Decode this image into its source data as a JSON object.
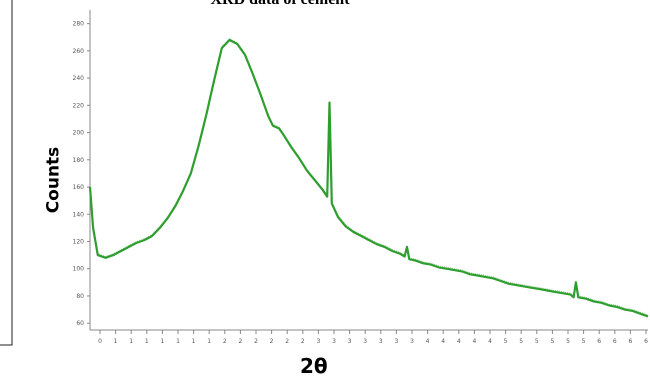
{
  "chart_data": {
    "type": "line",
    "title": "XRD data of cement",
    "xlabel": "2θ",
    "ylabel": "Counts",
    "x_ticks": [
      "0",
      "1",
      "1",
      "1",
      "1",
      "1",
      "1",
      "1",
      "2",
      "2",
      "2",
      "2",
      "2",
      "2",
      "3",
      "3",
      "3",
      "3",
      "3",
      "3",
      "3",
      "4",
      "4",
      "4",
      "4",
      "4",
      "5",
      "5",
      "5",
      "5",
      "5",
      "5",
      "6",
      "6",
      "6",
      "6"
    ],
    "y_ticks": [
      "60",
      "80",
      "100",
      "120",
      "140",
      "160",
      "180",
      "200",
      "220",
      "240",
      "260",
      "280"
    ],
    "xlim": [
      0,
      36
    ],
    "ylim": [
      55,
      290
    ],
    "grid": false,
    "series": [
      {
        "color": "#2e9e2e",
        "x": [
          0.0,
          0.2,
          0.5,
          1.0,
          1.5,
          2.0,
          2.5,
          3.0,
          3.5,
          4.0,
          4.5,
          5.0,
          5.5,
          6.0,
          6.5,
          7.0,
          7.5,
          8.0,
          8.5,
          9.0,
          9.5,
          10.0,
          10.5,
          11.0,
          11.5,
          11.8,
          12.2,
          12.5,
          13.0,
          13.5,
          14.0,
          14.5,
          15.0,
          15.3,
          15.45,
          15.6,
          16.0,
          16.5,
          17.0,
          17.5,
          18.0,
          18.5,
          19.0,
          19.5,
          20.0,
          20.3,
          20.45,
          20.6,
          21.0,
          21.5,
          22.0,
          22.5,
          23.0,
          23.5,
          24.0,
          24.5,
          25.0,
          25.5,
          26.0,
          26.5,
          27.0,
          27.5,
          28.0,
          28.5,
          29.0,
          29.5,
          30.0,
          30.5,
          31.0,
          31.2,
          31.35,
          31.5,
          32.0,
          32.5,
          33.0,
          33.5,
          34.0,
          34.5,
          35.0,
          35.5,
          36.0
        ],
        "values": [
          160,
          130,
          110,
          108,
          110,
          113,
          116,
          119,
          121,
          124,
          130,
          137,
          146,
          157,
          170,
          190,
          213,
          238,
          262,
          268,
          265,
          257,
          243,
          228,
          212,
          205,
          203,
          198,
          189,
          181,
          172,
          165,
          158,
          153,
          222,
          148,
          138,
          131,
          127,
          124,
          121,
          118,
          116,
          113,
          111,
          109,
          116,
          107,
          106,
          104,
          103,
          101,
          100,
          99,
          98,
          96,
          95,
          94,
          93,
          91,
          89,
          88,
          87,
          86,
          85,
          84,
          83,
          82,
          81,
          79,
          90,
          79,
          78,
          76,
          75,
          73,
          72,
          70,
          69,
          67,
          65
        ]
      }
    ]
  }
}
